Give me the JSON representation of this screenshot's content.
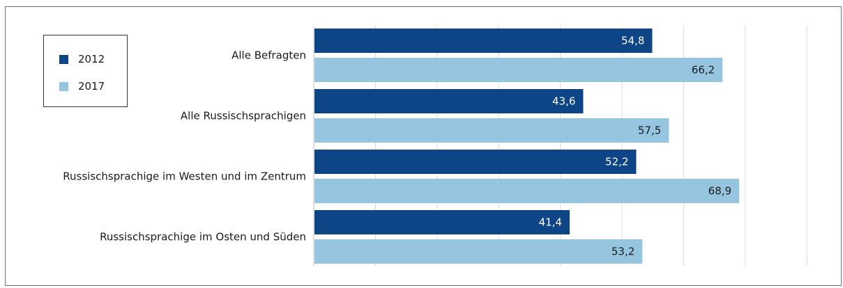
{
  "chart_data": {
    "type": "bar",
    "orientation": "horizontal",
    "categories": [
      "Alle  Befragten",
      "Alle Russischsprachigen",
      "Russischsprachige im Westen und im Zentrum",
      "Russischsprachige im Osten und Süden"
    ],
    "series": [
      {
        "name": "2012",
        "color": "#0e4586",
        "label_color": "#ffffff",
        "values": [
          54.8,
          43.6,
          52.2,
          41.4
        ],
        "labels": [
          "54,8",
          "43,6",
          "52,2",
          "41,4"
        ]
      },
      {
        "name": "2017",
        "color": "#96c6df",
        "label_color": "#1a1a1a",
        "values": [
          66.2,
          57.5,
          68.9,
          53.2
        ],
        "labels": [
          "66,2",
          "57,5",
          "68,9",
          "53,2"
        ]
      }
    ],
    "xlim": [
      0,
      80
    ],
    "grid": true,
    "gridline_step": 10,
    "legend_position": "top-left",
    "title": "",
    "xlabel": "",
    "ylabel": ""
  }
}
